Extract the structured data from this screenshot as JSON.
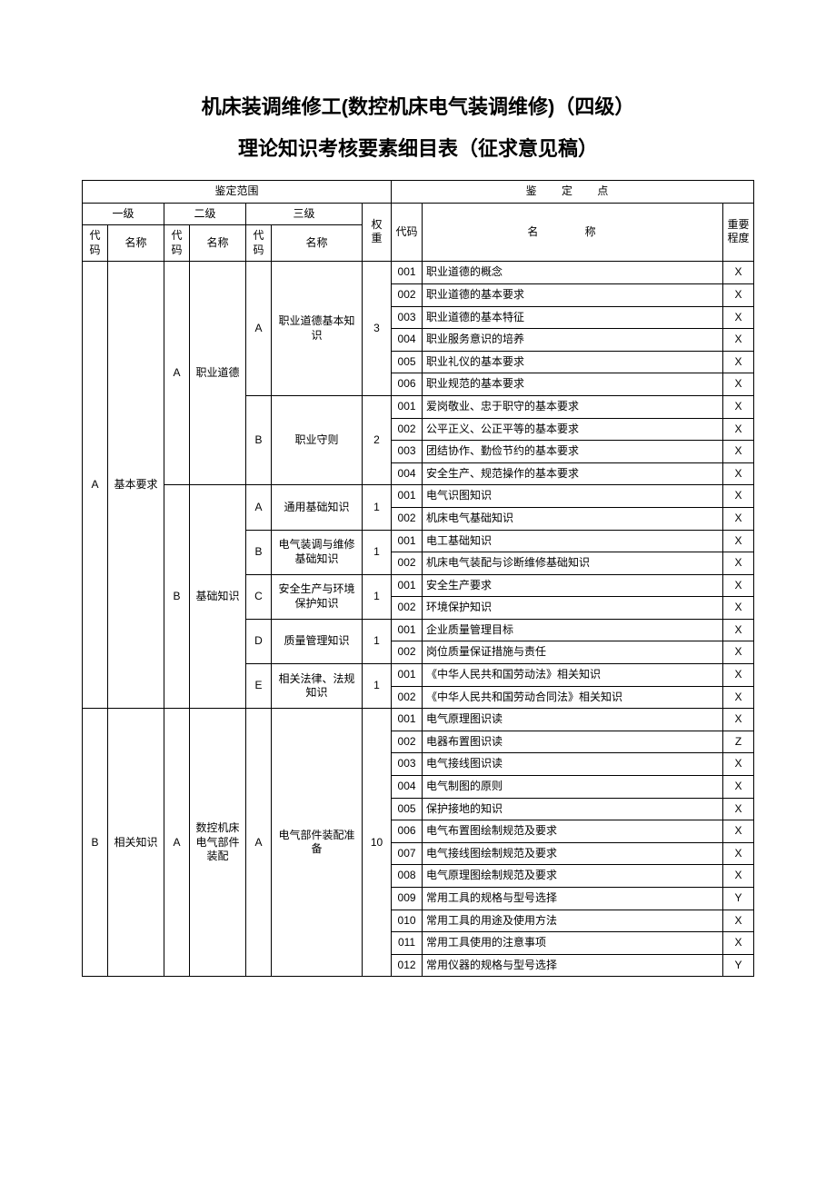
{
  "title_line1": "机床装调维修工(数控机床电气装调维修)（四级）",
  "title_line2": "理论知识考核要素细目表（征求意见稿）",
  "headers": {
    "scope": "鉴定范围",
    "point": "鉴 定 点",
    "l1": "一级",
    "l2": "二级",
    "l3": "三级",
    "code": "代码",
    "name": "名称",
    "weight": "权重",
    "pname": "名 称",
    "importance": "重要程度"
  },
  "l1": [
    {
      "code": "A",
      "name": "基本要求"
    },
    {
      "code": "B",
      "name": "相关知识"
    }
  ],
  "l2": [
    {
      "code": "A",
      "name": "职业道德"
    },
    {
      "code": "B",
      "name": "基础知识"
    },
    {
      "code": "A",
      "name": "数控机床电气部件装配"
    }
  ],
  "l3": [
    {
      "code": "A",
      "name": "职业道德基本知识",
      "weight": "3"
    },
    {
      "code": "B",
      "name": "职业守则",
      "weight": "2"
    },
    {
      "code": "A",
      "name": "通用基础知识",
      "weight": "1"
    },
    {
      "code": "B",
      "name": "电气装调与维修基础知识",
      "weight": "1"
    },
    {
      "code": "C",
      "name": "安全生产与环境保护知识",
      "weight": "1"
    },
    {
      "code": "D",
      "name": "质量管理知识",
      "weight": "1"
    },
    {
      "code": "E",
      "name": "相关法律、法规知识",
      "weight": "1"
    },
    {
      "code": "A",
      "name": "电气部件装配准备",
      "weight": "10"
    }
  ],
  "rows": [
    {
      "code": "001",
      "name": "职业道德的概念",
      "imp": "X"
    },
    {
      "code": "002",
      "name": "职业道德的基本要求",
      "imp": "X"
    },
    {
      "code": "003",
      "name": "职业道德的基本特征",
      "imp": "X"
    },
    {
      "code": "004",
      "name": "职业服务意识的培养",
      "imp": "X"
    },
    {
      "code": "005",
      "name": "职业礼仪的基本要求",
      "imp": "X"
    },
    {
      "code": "006",
      "name": "职业规范的基本要求",
      "imp": "X"
    },
    {
      "code": "001",
      "name": "爱岗敬业、忠于职守的基本要求",
      "imp": "X"
    },
    {
      "code": "002",
      "name": "公平正义、公正平等的基本要求",
      "imp": "X"
    },
    {
      "code": "003",
      "name": "团结协作、勤俭节约的基本要求",
      "imp": "X"
    },
    {
      "code": "004",
      "name": "安全生产、规范操作的基本要求",
      "imp": "X"
    },
    {
      "code": "001",
      "name": "电气识图知识",
      "imp": "X"
    },
    {
      "code": "002",
      "name": "机床电气基础知识",
      "imp": "X"
    },
    {
      "code": "001",
      "name": "电工基础知识",
      "imp": "X"
    },
    {
      "code": "002",
      "name": "机床电气装配与诊断维修基础知识",
      "imp": "X"
    },
    {
      "code": "001",
      "name": "安全生产要求",
      "imp": "X"
    },
    {
      "code": "002",
      "name": "环境保护知识",
      "imp": "X"
    },
    {
      "code": "001",
      "name": "企业质量管理目标",
      "imp": "X"
    },
    {
      "code": "002",
      "name": "岗位质量保证措施与责任",
      "imp": "X"
    },
    {
      "code": "001",
      "name": "《中华人民共和国劳动法》相关知识",
      "imp": "X"
    },
    {
      "code": "002",
      "name": "《中华人民共和国劳动合同法》相关知识",
      "imp": "X"
    },
    {
      "code": "001",
      "name": "电气原理图识读",
      "imp": "X"
    },
    {
      "code": "002",
      "name": "电器布置图识读",
      "imp": "Z"
    },
    {
      "code": "003",
      "name": "电气接线图识读",
      "imp": "X"
    },
    {
      "code": "004",
      "name": "电气制图的原则",
      "imp": "X"
    },
    {
      "code": "005",
      "name": "保护接地的知识",
      "imp": "X"
    },
    {
      "code": "006",
      "name": "电气布置图绘制规范及要求",
      "imp": "X"
    },
    {
      "code": "007",
      "name": "电气接线图绘制规范及要求",
      "imp": "X"
    },
    {
      "code": "008",
      "name": "电气原理图绘制规范及要求",
      "imp": "X"
    },
    {
      "code": "009",
      "name": "常用工具的规格与型号选择",
      "imp": "Y"
    },
    {
      "code": "010",
      "name": "常用工具的用途及使用方法",
      "imp": "X"
    },
    {
      "code": "011",
      "name": "常用工具使用的注意事项",
      "imp": "X"
    },
    {
      "code": "012",
      "name": "常用仪器的规格与型号选择",
      "imp": "Y"
    }
  ]
}
